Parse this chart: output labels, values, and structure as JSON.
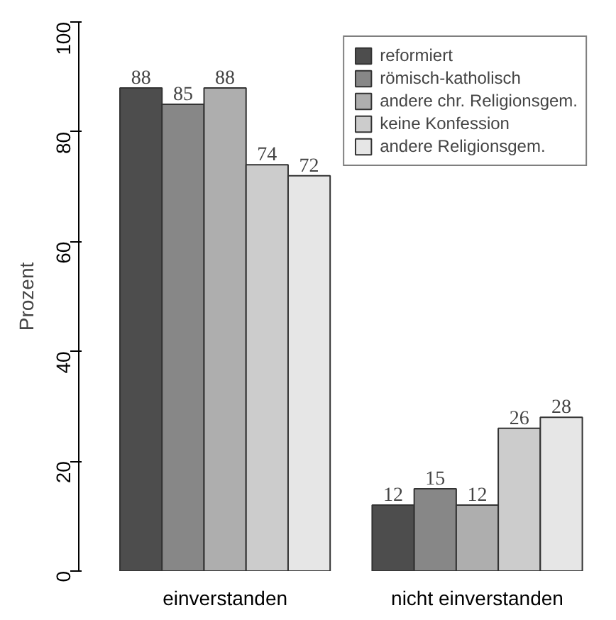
{
  "chart_data": {
    "type": "bar",
    "ylabel": "Prozent",
    "categories": [
      "einverstanden",
      "nicht einverstanden"
    ],
    "series": [
      {
        "name": "reformiert",
        "color": "#4d4d4d",
        "values": [
          88,
          12
        ]
      },
      {
        "name": "römisch-katholisch",
        "color": "#878787",
        "values": [
          85,
          15
        ]
      },
      {
        "name": "andere chr. Religionsgem.",
        "color": "#aeaeae",
        "values": [
          88,
          12
        ]
      },
      {
        "name": "keine Konfession",
        "color": "#cccccc",
        "values": [
          74,
          26
        ]
      },
      {
        "name": "andere Religionsgem.",
        "color": "#e6e6e6",
        "values": [
          72,
          28
        ]
      }
    ],
    "ylim": [
      0,
      100
    ],
    "yticks": [
      0,
      20,
      40,
      60,
      80,
      100
    ],
    "data_labels": true,
    "grid": false,
    "legend": "top right"
  }
}
